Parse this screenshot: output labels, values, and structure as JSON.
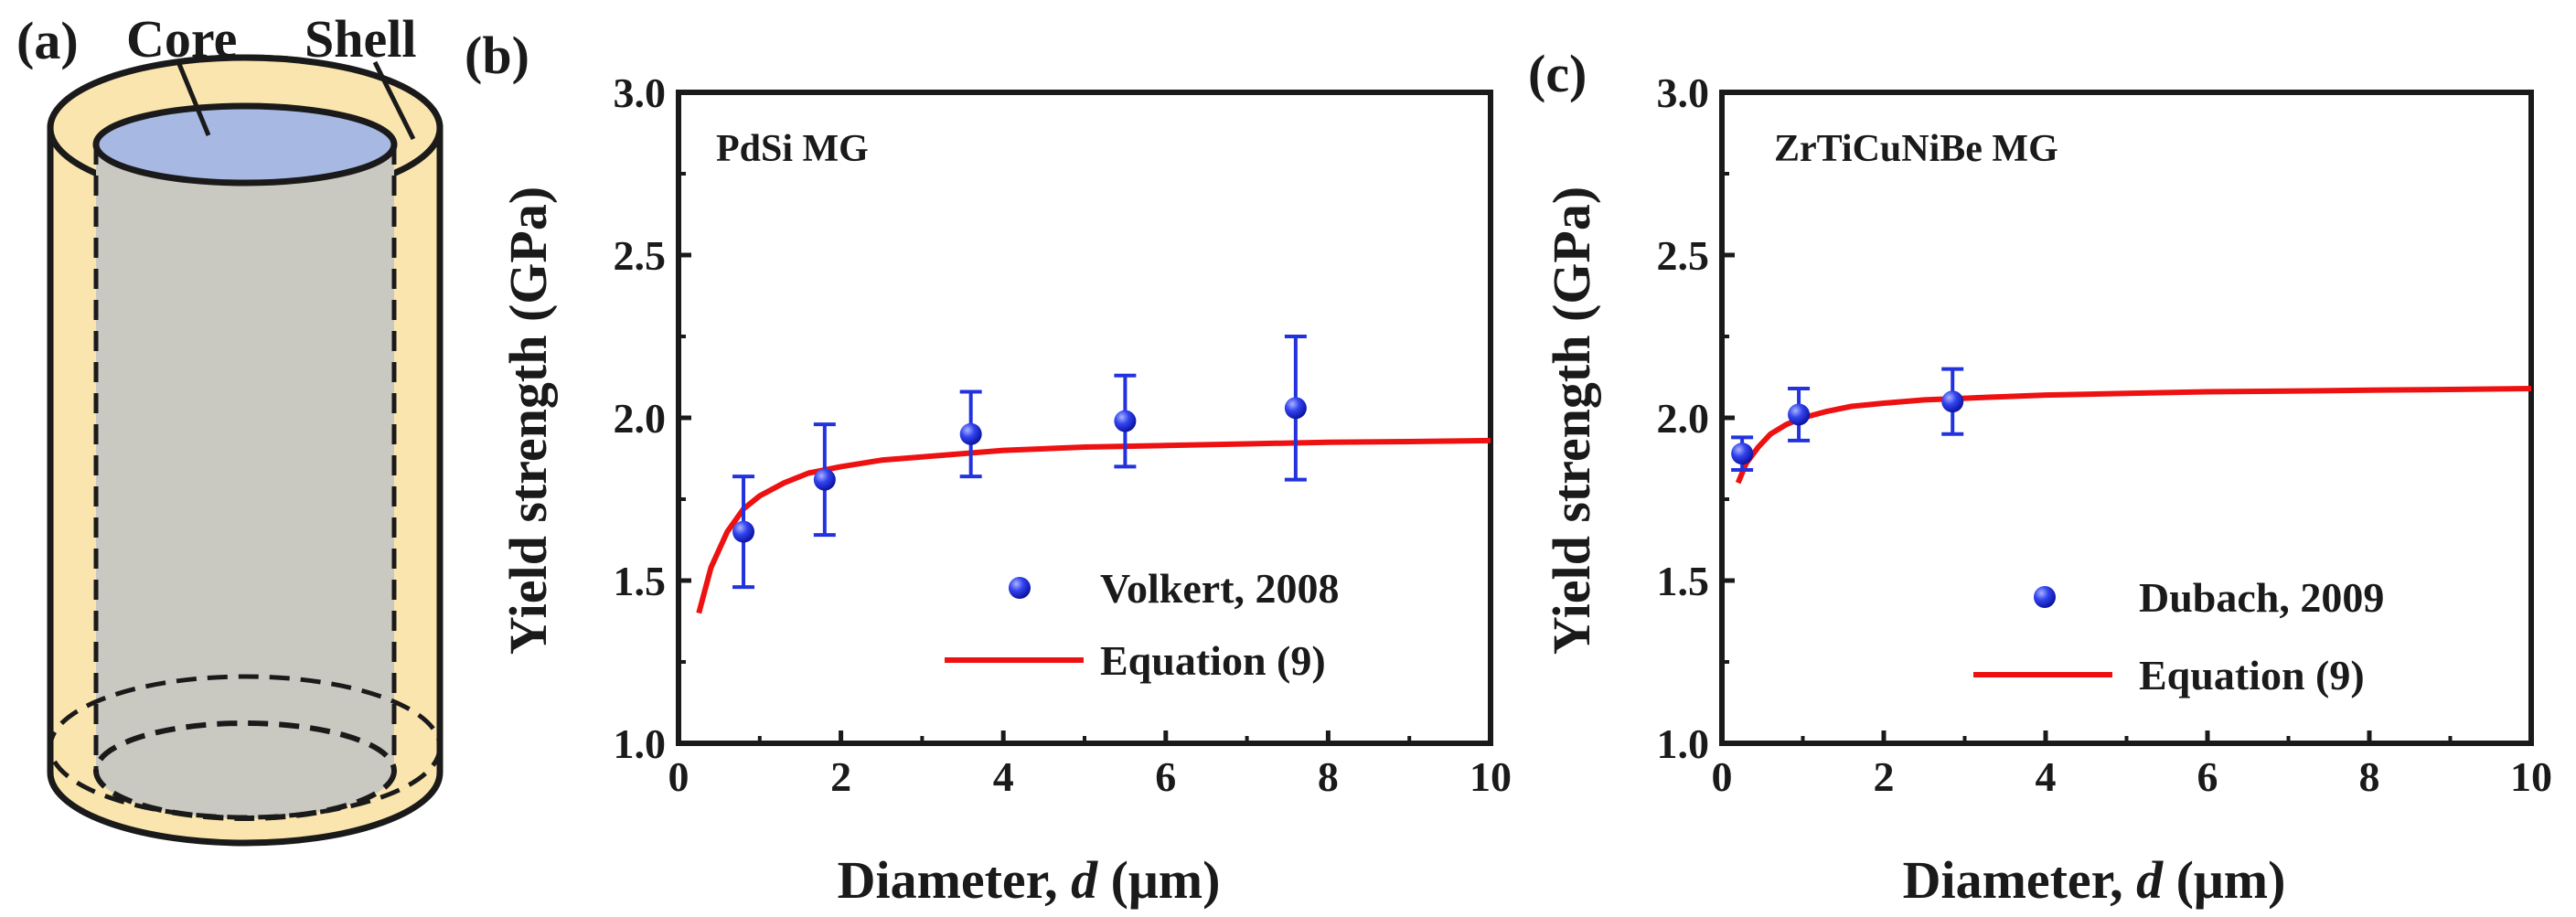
{
  "panels": {
    "a": {
      "label": "(a)",
      "core_label": "Core",
      "shell_label": "Shell"
    },
    "b": {
      "label": "(b)"
    },
    "c": {
      "label": "(c)"
    }
  },
  "colors": {
    "shell_fill": "#fbe5ae",
    "shell_stroke": "#1a1a1a",
    "core_fill": "#c9c8c1",
    "core_top": "#a7b9e3",
    "marker": "#2233dd",
    "curve": "#ee1111"
  },
  "chart_data": [
    {
      "id": "b",
      "type": "scatter",
      "title": "PdSi MG",
      "xlabel_prefix": "Diameter,",
      "xlabel_var": "d",
      "xlabel_unit": "(μm)",
      "ylabel": "Yield strength (GPa)",
      "xlim": [
        0,
        10
      ],
      "ylim": [
        1.0,
        3.0
      ],
      "xticks": [
        0,
        2,
        4,
        6,
        8,
        10
      ],
      "yticks": [
        "1.0",
        "1.5",
        "2.0",
        "2.5",
        "3.0"
      ],
      "series": [
        {
          "name": "Volkert, 2008",
          "kind": "points",
          "x": [
            0.8,
            1.8,
            3.6,
            5.5,
            7.6
          ],
          "y": [
            1.65,
            1.81,
            1.95,
            1.99,
            2.03
          ],
          "yerr": [
            0.17,
            0.17,
            0.13,
            0.14,
            0.22
          ]
        },
        {
          "name": "Equation (9)",
          "kind": "line",
          "x": [
            0.25,
            0.4,
            0.6,
            0.8,
            1.0,
            1.3,
            1.6,
            2.0,
            2.5,
            3.0,
            4.0,
            5.0,
            6.0,
            7.0,
            8.0,
            9.0,
            10.0
          ],
          "y": [
            1.4,
            1.54,
            1.65,
            1.72,
            1.76,
            1.8,
            1.83,
            1.85,
            1.87,
            1.88,
            1.9,
            1.91,
            1.915,
            1.92,
            1.925,
            1.927,
            1.93
          ]
        }
      ],
      "legend_position": "bottom-right"
    },
    {
      "id": "c",
      "type": "scatter",
      "title": "ZrTiCuNiBe MG",
      "xlabel_prefix": "Diameter,",
      "xlabel_var": "d",
      "xlabel_unit": "(μm)",
      "ylabel": "Yield strength (GPa)",
      "xlim": [
        0,
        10
      ],
      "ylim": [
        1.0,
        3.0
      ],
      "xticks": [
        0,
        2,
        4,
        6,
        8,
        10
      ],
      "yticks": [
        "1.0",
        "1.5",
        "2.0",
        "2.5",
        "3.0"
      ],
      "series": [
        {
          "name": "Dubach, 2009",
          "kind": "points",
          "x": [
            0.25,
            0.95,
            2.85
          ],
          "y": [
            1.89,
            2.01,
            2.05
          ],
          "yerr": [
            0.05,
            0.08,
            0.1
          ]
        },
        {
          "name": "Equation (9)",
          "kind": "line",
          "x": [
            0.2,
            0.3,
            0.45,
            0.6,
            0.8,
            1.0,
            1.3,
            1.6,
            2.0,
            2.5,
            3.0,
            4.0,
            5.0,
            6.0,
            7.0,
            8.0,
            9.0,
            10.0
          ],
          "y": [
            1.8,
            1.86,
            1.91,
            1.95,
            1.98,
            2.0,
            2.02,
            2.035,
            2.045,
            2.055,
            2.06,
            2.07,
            2.075,
            2.08,
            2.082,
            2.085,
            2.087,
            2.09
          ]
        }
      ],
      "legend_position": "bottom-right"
    }
  ]
}
